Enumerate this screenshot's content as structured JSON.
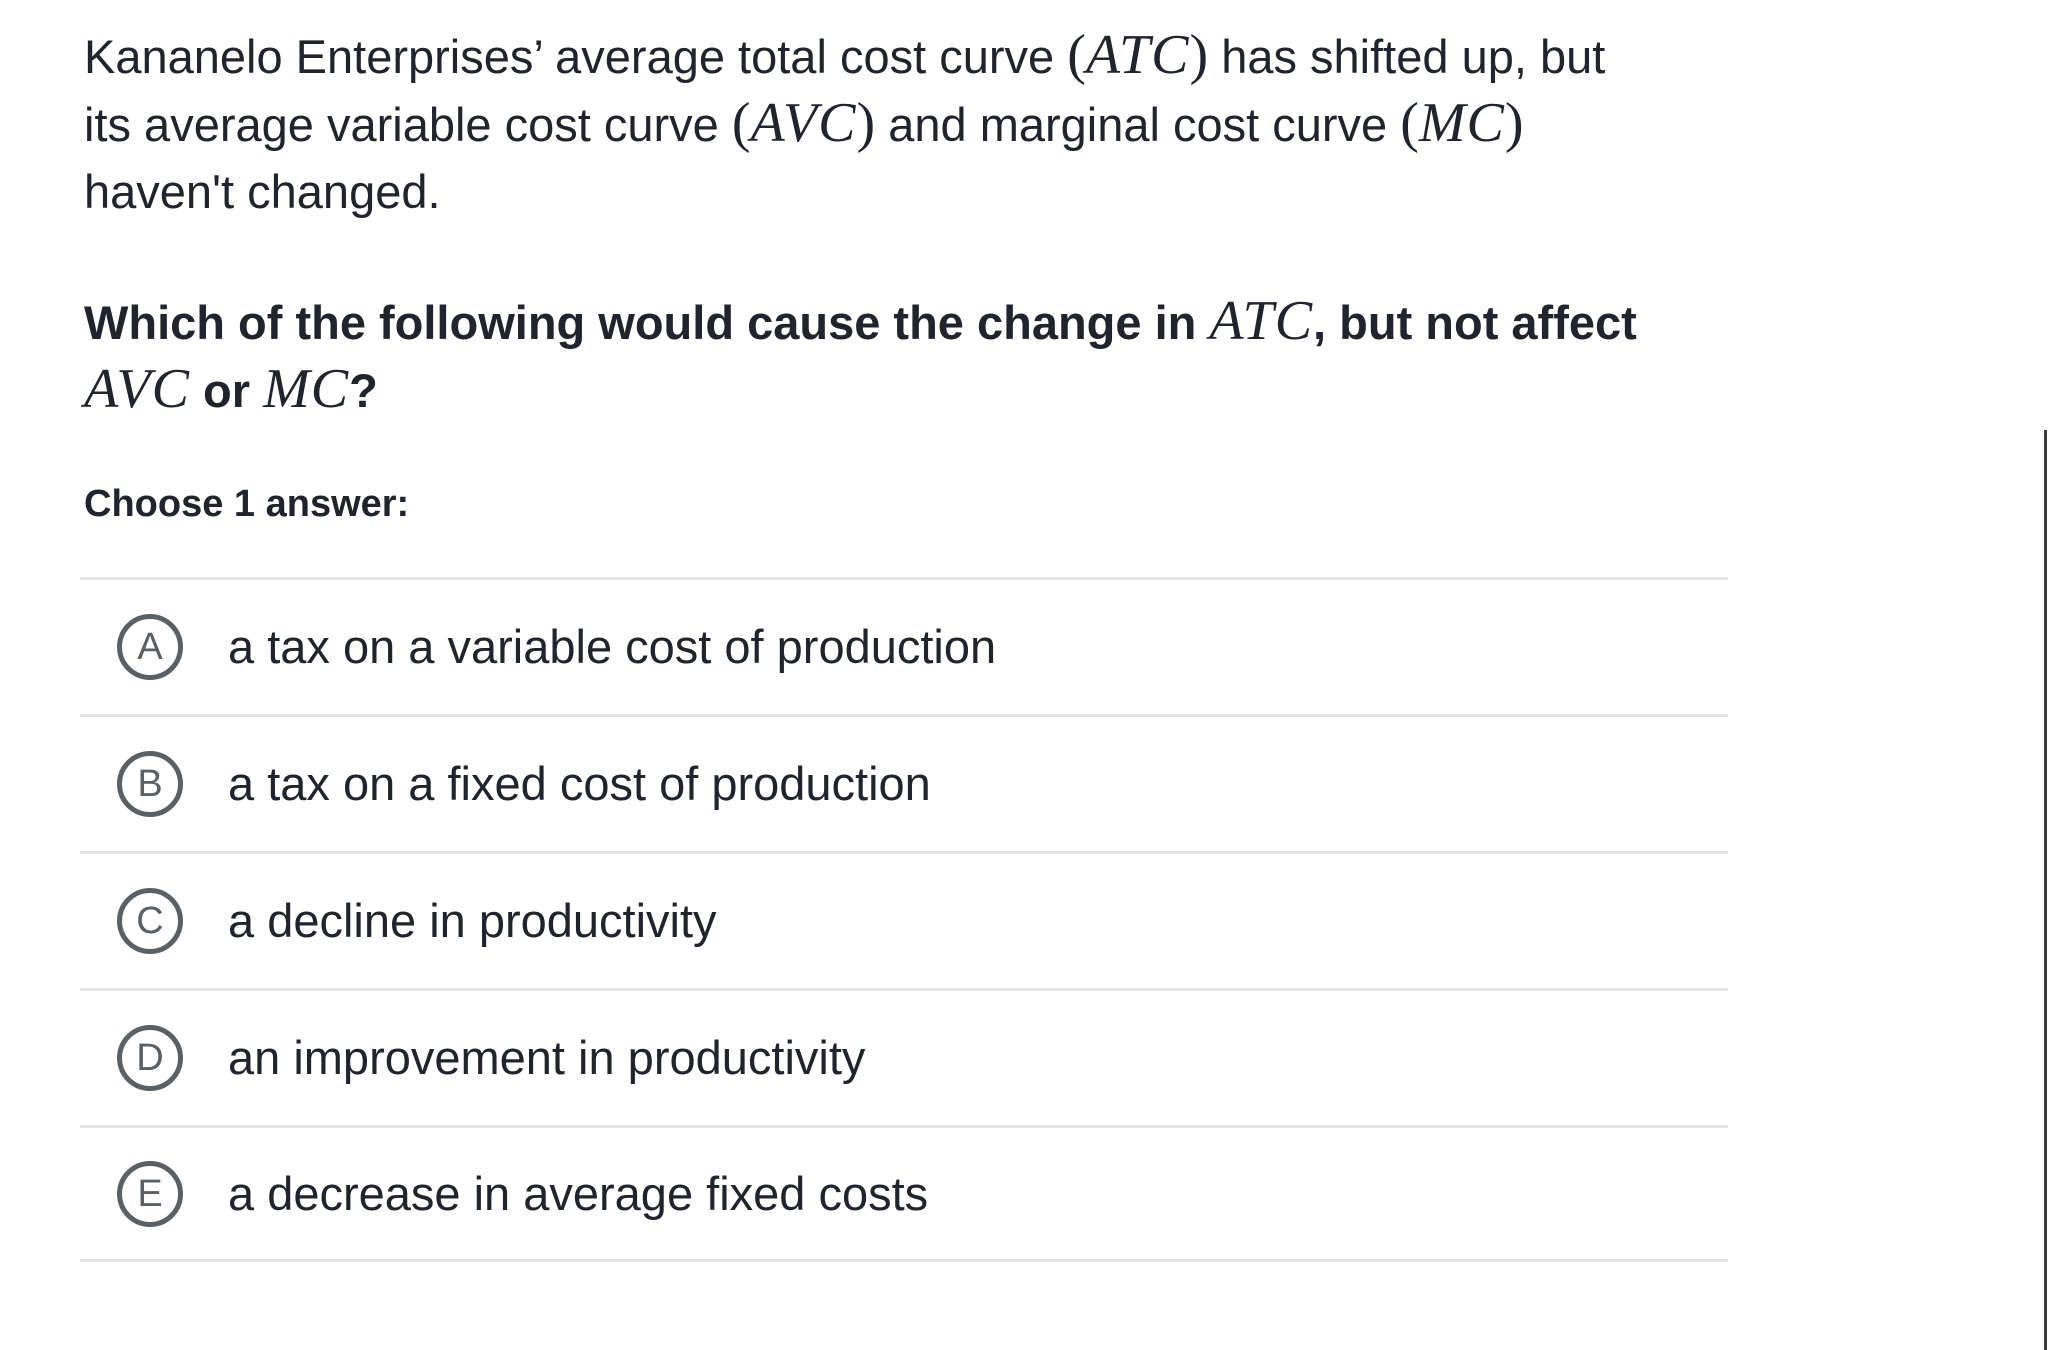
{
  "colors": {
    "background": "#ffffff",
    "text": "#21242c",
    "divider": "#e4e5e7",
    "radio_outline": "#5b6065",
    "panel_right_border": "#3a3a3a"
  },
  "punct": {
    "lparen": "(",
    "rparen": ")"
  },
  "question_intro": {
    "line1_text1": "Kananelo Enterprises’ average total cost curve ",
    "line1_math1": "ATC",
    "line1_text2": " has shifted up, but",
    "line2_text1": "its average variable cost curve ",
    "line2_math1": "AVC",
    "line2_text2": " and marginal cost curve ",
    "line2_math2": "MC",
    "line3_text1": "haven't changed."
  },
  "question_prompt": {
    "line1_text1": "Which of the following would cause the change in ",
    "line1_math1": "ATC",
    "line1_text2": ", but not affect",
    "line2_math1": "AVC",
    "line2_text1": " or ",
    "line2_math2": "MC",
    "line2_text2": "?"
  },
  "choose_label": "Choose 1 answer:",
  "options": [
    {
      "letter": "A",
      "label": "a tax on a variable cost of production"
    },
    {
      "letter": "B",
      "label": "a tax on a fixed cost of production"
    },
    {
      "letter": "C",
      "label": "a decline in productivity"
    },
    {
      "letter": "D",
      "label": "an improvement in productivity"
    },
    {
      "letter": "E",
      "label": "a decrease in average fixed costs"
    }
  ]
}
